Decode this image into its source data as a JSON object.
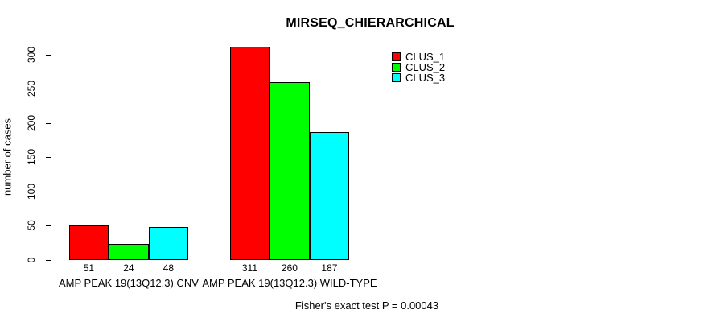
{
  "title": "MIRSEQ_CHIERARCHICAL",
  "footer": "Fisher's exact test P = 0.00043",
  "chart_data": {
    "type": "bar",
    "title": "MIRSEQ_CHIERARCHICAL",
    "xlabel": "",
    "ylabel": "number of cases",
    "ylim": [
      0,
      300
    ],
    "yticks": [
      0,
      50,
      100,
      150,
      200,
      250,
      300
    ],
    "grid": false,
    "legend_position": "top-right",
    "bar_value_labels_shown": true,
    "categories": [
      "AMP PEAK 19(13Q12.3) CNV",
      "AMP PEAK 19(13Q12.3) WILD-TYPE"
    ],
    "series": [
      {
        "name": "CLUS_1",
        "color": "#ff0000",
        "values": [
          51,
          311
        ]
      },
      {
        "name": "CLUS_2",
        "color": "#00ff00",
        "values": [
          24,
          260
        ]
      },
      {
        "name": "CLUS_3",
        "color": "#00ffff",
        "values": [
          48,
          187
        ]
      }
    ],
    "annotation": "Fisher's exact test P = 0.00043"
  }
}
